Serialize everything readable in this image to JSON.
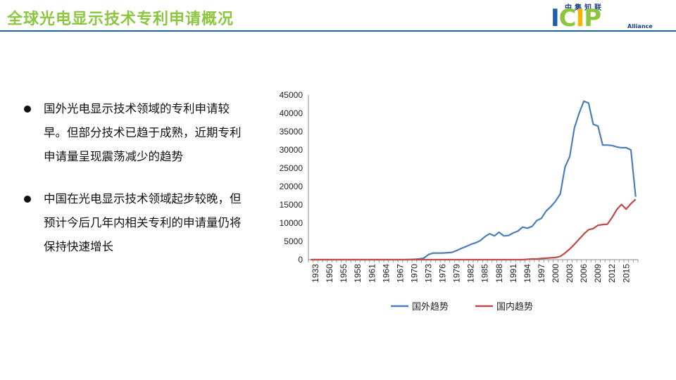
{
  "slide": {
    "title": "全球光电显示技术专利申请概况",
    "colors": {
      "title": "#8cc63f",
      "rule": "#1b5fae",
      "foreign": "#4a7ebb",
      "domestic": "#be4b48"
    }
  },
  "logo": {
    "chinese": "中集知联",
    "letters": [
      "I",
      "C",
      "I",
      "P"
    ],
    "sub": "Alliance"
  },
  "bullets": [
    {
      "text": "国外光电显示技术领域的专利申请较早。但部分技术已趋于成熟，近期专利申请量呈现震荡减少的趋势"
    },
    {
      "text": "中国在光电显示技术领域起步较晚，但预计今后几年内相关专利的申请量仍将保持快速增长"
    }
  ],
  "chart_data": {
    "type": "line",
    "title": "",
    "xlabel": "",
    "ylabel": "",
    "ylim": [
      0,
      45000
    ],
    "yticks": [
      "0",
      "5000",
      "10000",
      "15000",
      "20000",
      "25000",
      "30000",
      "35000",
      "40000",
      "45000"
    ],
    "xticks": [
      "1933",
      "1950",
      "1955",
      "1958",
      "1961",
      "1964",
      "1967",
      "1970",
      "1973",
      "1976",
      "1979",
      "1982",
      "1985",
      "1988",
      "1991",
      "1994",
      "1997",
      "2000",
      "2003",
      "2006",
      "2009",
      "2012",
      "2015"
    ],
    "legend_position": "bottom",
    "x_count": 70,
    "series": [
      {
        "name": "国外趋势",
        "color": "#4a7ebb",
        "values": [
          0,
          0,
          0,
          0,
          0,
          0,
          0,
          0,
          0,
          0,
          0,
          0,
          0,
          0,
          0,
          0,
          0,
          0,
          0,
          0,
          0,
          50,
          100,
          200,
          400,
          1400,
          1800,
          1800,
          1800,
          1900,
          2000,
          2500,
          3100,
          3600,
          4200,
          4600,
          5200,
          6300,
          7100,
          6500,
          7500,
          6500,
          6600,
          7300,
          7800,
          8900,
          8600,
          9100,
          10700,
          11300,
          13300,
          14500,
          16000,
          18000,
          25300,
          28200,
          36000,
          40000,
          43300,
          42800,
          37000,
          36500,
          31300,
          31300,
          31200,
          30800,
          30600,
          30600,
          30000,
          17200
        ]
      },
      {
        "name": "国内趋势",
        "color": "#be4b48",
        "values": [
          0,
          0,
          0,
          0,
          0,
          0,
          0,
          0,
          0,
          0,
          0,
          0,
          0,
          0,
          0,
          0,
          0,
          0,
          0,
          0,
          0,
          0,
          0,
          0,
          0,
          0,
          0,
          0,
          0,
          0,
          0,
          0,
          0,
          0,
          0,
          0,
          0,
          0,
          0,
          0,
          0,
          0,
          0,
          0,
          0,
          0,
          100,
          200,
          200,
          300,
          400,
          500,
          600,
          900,
          1800,
          2900,
          4200,
          5600,
          7000,
          8200,
          8500,
          9400,
          9600,
          9700,
          11500,
          13700,
          15100,
          13800,
          15300,
          16500
        ]
      }
    ]
  }
}
